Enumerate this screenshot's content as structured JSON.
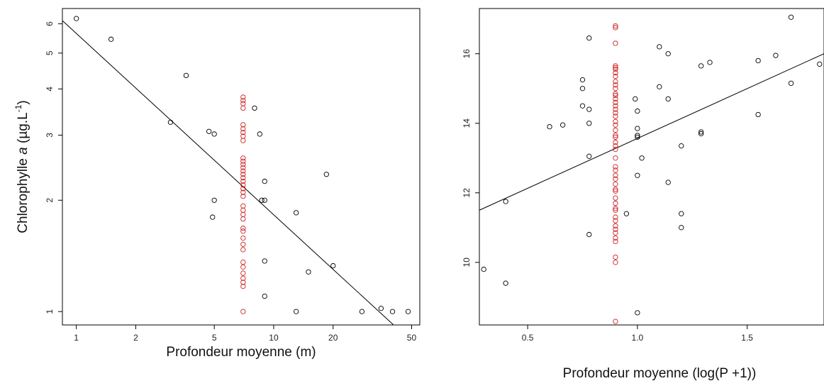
{
  "chart_data": [
    {
      "type": "scatter",
      "xscale": "log",
      "yscale": "log",
      "xlim": [
        0.85,
        55
      ],
      "ylim": [
        0.92,
        6.6
      ],
      "xticks": [
        1,
        2,
        5,
        10,
        20,
        50
      ],
      "yticks": [
        1,
        2,
        3,
        4,
        5,
        6
      ],
      "xlabel": "Profondeur moyenne (m)",
      "ylabel_prefix": "Chlorophylle ",
      "ylabel_italic": "a",
      "ylabel_mid": " (µg.L",
      "ylabel_sup": "-1",
      "ylabel_suffix": ")",
      "grid": false,
      "regression_line": {
        "x": [
          0.85,
          40.5
        ],
        "y": [
          6.12,
          0.92
        ]
      },
      "series": [
        {
          "color": "#000000",
          "points": [
            [
              1.0,
              6.2
            ],
            [
              1.5,
              5.45
            ],
            [
              3.0,
              3.25
            ],
            [
              3.6,
              4.35
            ],
            [
              4.7,
              3.07
            ],
            [
              5.0,
              3.02
            ],
            [
              5.0,
              2.0
            ],
            [
              4.9,
              1.8
            ],
            [
              8.0,
              3.55
            ],
            [
              8.5,
              3.02
            ],
            [
              8.7,
              2.0
            ],
            [
              9.0,
              2.0
            ],
            [
              9.0,
              2.25
            ],
            [
              9.0,
              1.37
            ],
            [
              9.0,
              1.1
            ],
            [
              13.0,
              1.85
            ],
            [
              13.0,
              1.0
            ],
            [
              15.0,
              1.28
            ],
            [
              18.5,
              2.35
            ],
            [
              20.0,
              1.33
            ],
            [
              28.0,
              1.0
            ],
            [
              35.0,
              1.02
            ],
            [
              40.0,
              1.0
            ],
            [
              48.0,
              1.0
            ]
          ]
        },
        {
          "color": "#cc2222",
          "points": [
            [
              7.0,
              3.8
            ],
            [
              7.0,
              3.72
            ],
            [
              7.0,
              3.65
            ],
            [
              7.0,
              3.55
            ],
            [
              7.0,
              3.2
            ],
            [
              7.0,
              3.12
            ],
            [
              7.0,
              3.05
            ],
            [
              7.0,
              2.98
            ],
            [
              7.0,
              2.9
            ],
            [
              7.0,
              2.6
            ],
            [
              7.0,
              2.55
            ],
            [
              7.0,
              2.5
            ],
            [
              7.0,
              2.45
            ],
            [
              7.0,
              2.4
            ],
            [
              7.0,
              2.35
            ],
            [
              7.0,
              2.3
            ],
            [
              7.0,
              2.25
            ],
            [
              7.0,
              2.2
            ],
            [
              7.0,
              2.15
            ],
            [
              7.0,
              2.1
            ],
            [
              7.0,
              2.05
            ],
            [
              7.0,
              1.93
            ],
            [
              7.0,
              1.88
            ],
            [
              7.0,
              1.83
            ],
            [
              7.0,
              1.78
            ],
            [
              7.0,
              1.68
            ],
            [
              7.0,
              1.65
            ],
            [
              7.0,
              1.58
            ],
            [
              7.0,
              1.52
            ],
            [
              7.0,
              1.47
            ],
            [
              7.0,
              1.36
            ],
            [
              7.0,
              1.32
            ],
            [
              7.0,
              1.27
            ],
            [
              7.0,
              1.23
            ],
            [
              7.0,
              1.2
            ],
            [
              7.0,
              1.17
            ],
            [
              7.0,
              1.0
            ]
          ]
        }
      ]
    },
    {
      "type": "scatter",
      "xlim": [
        0.28,
        1.85
      ],
      "ylim": [
        8.2,
        17.3
      ],
      "xticks": [
        0.5,
        1.0,
        1.5
      ],
      "xtick_labels": [
        "0.5",
        "1.0",
        "1.5"
      ],
      "yticks": [
        10,
        12,
        14,
        16
      ],
      "xlabel": "Profondeur moyenne (log(P +1))",
      "grid": false,
      "regression_line": {
        "x": [
          0.28,
          1.85
        ],
        "y": [
          11.5,
          16.0
        ]
      },
      "series": [
        {
          "color": "#000000",
          "points": [
            [
              0.3,
              9.8
            ],
            [
              0.4,
              9.4
            ],
            [
              0.4,
              11.75
            ],
            [
              0.6,
              13.9
            ],
            [
              0.66,
              13.95
            ],
            [
              0.75,
              15.25
            ],
            [
              0.75,
              15.0
            ],
            [
              0.75,
              14.5
            ],
            [
              0.78,
              16.45
            ],
            [
              0.78,
              14.4
            ],
            [
              0.78,
              14.0
            ],
            [
              0.78,
              13.05
            ],
            [
              0.78,
              10.8
            ],
            [
              0.95,
              11.4
            ],
            [
              0.99,
              14.7
            ],
            [
              1.0,
              14.35
            ],
            [
              1.0,
              13.85
            ],
            [
              1.0,
              13.65
            ],
            [
              1.0,
              13.6
            ],
            [
              1.0,
              12.5
            ],
            [
              1.0,
              8.55
            ],
            [
              1.02,
              13.0
            ],
            [
              1.1,
              16.2
            ],
            [
              1.1,
              15.05
            ],
            [
              1.14,
              16.0
            ],
            [
              1.14,
              14.7
            ],
            [
              1.14,
              12.3
            ],
            [
              1.2,
              13.35
            ],
            [
              1.2,
              11.4
            ],
            [
              1.2,
              11.0
            ],
            [
              1.29,
              15.65
            ],
            [
              1.29,
              13.75
            ],
            [
              1.29,
              13.7
            ],
            [
              1.33,
              15.75
            ],
            [
              1.55,
              15.8
            ],
            [
              1.55,
              14.25
            ],
            [
              1.63,
              15.95
            ],
            [
              1.7,
              17.05
            ],
            [
              1.7,
              15.15
            ],
            [
              1.83,
              15.7
            ]
          ]
        },
        {
          "color": "#cc2222",
          "points": [
            [
              0.9,
              16.8
            ],
            [
              0.9,
              16.75
            ],
            [
              0.9,
              16.3
            ],
            [
              0.9,
              15.65
            ],
            [
              0.9,
              15.6
            ],
            [
              0.9,
              15.55
            ],
            [
              0.9,
              15.45
            ],
            [
              0.9,
              15.35
            ],
            [
              0.9,
              15.2
            ],
            [
              0.9,
              15.1
            ],
            [
              0.9,
              15.0
            ],
            [
              0.9,
              14.85
            ],
            [
              0.9,
              14.8
            ],
            [
              0.9,
              14.7
            ],
            [
              0.9,
              14.6
            ],
            [
              0.9,
              14.5
            ],
            [
              0.9,
              14.4
            ],
            [
              0.9,
              14.3
            ],
            [
              0.9,
              14.2
            ],
            [
              0.9,
              14.05
            ],
            [
              0.9,
              13.95
            ],
            [
              0.9,
              13.8
            ],
            [
              0.9,
              13.65
            ],
            [
              0.9,
              13.6
            ],
            [
              0.9,
              13.45
            ],
            [
              0.9,
              13.35
            ],
            [
              0.9,
              13.25
            ],
            [
              0.9,
              13.0
            ],
            [
              0.9,
              12.75
            ],
            [
              0.9,
              12.65
            ],
            [
              0.9,
              12.5
            ],
            [
              0.9,
              12.4
            ],
            [
              0.9,
              12.25
            ],
            [
              0.9,
              12.1
            ],
            [
              0.9,
              12.05
            ],
            [
              0.9,
              11.85
            ],
            [
              0.9,
              11.7
            ],
            [
              0.9,
              11.55
            ],
            [
              0.9,
              11.5
            ],
            [
              0.9,
              11.3
            ],
            [
              0.9,
              11.2
            ],
            [
              0.9,
              11.05
            ],
            [
              0.9,
              10.95
            ],
            [
              0.9,
              10.85
            ],
            [
              0.9,
              10.7
            ],
            [
              0.9,
              10.6
            ],
            [
              0.9,
              10.15
            ],
            [
              0.9,
              10.0
            ],
            [
              0.9,
              8.3
            ]
          ]
        }
      ]
    }
  ]
}
